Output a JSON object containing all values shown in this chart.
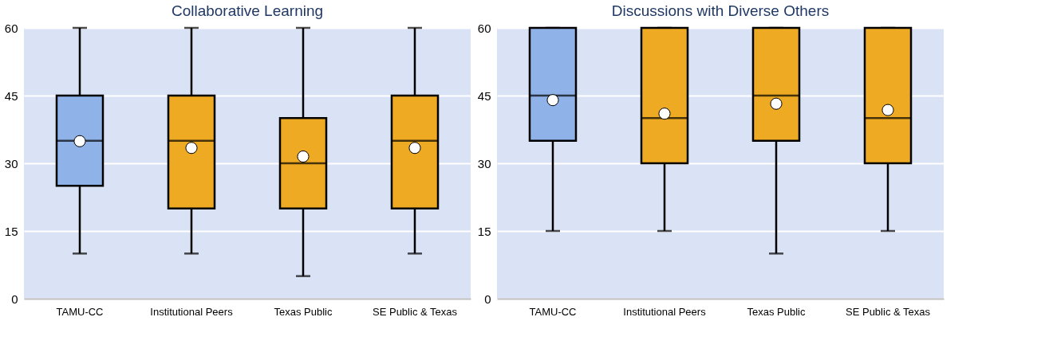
{
  "chart_data": [
    {
      "type": "box",
      "title": "Collaborative Learning",
      "categories": [
        "TAMU-CC",
        "Institutional Peers",
        "Texas Public",
        "SE Public & Texas"
      ],
      "colors": [
        "#8fb2e8",
        "#efaa24",
        "#efaa24",
        "#efaa24"
      ],
      "boxes": [
        {
          "low": 10,
          "q1": 25,
          "median": 35,
          "q3": 45,
          "high": 60,
          "mean": 34.9
        },
        {
          "low": 10,
          "q1": 20,
          "median": 35,
          "q3": 45,
          "high": 60,
          "mean": 33.4
        },
        {
          "low": 5,
          "q1": 20,
          "median": 30,
          "q3": 40,
          "high": 60,
          "mean": 31.5
        },
        {
          "low": 10,
          "q1": 20,
          "median": 35,
          "q3": 45,
          "high": 60,
          "mean": 33.4
        }
      ],
      "ylim": [
        0,
        60
      ],
      "yticks": [
        0,
        15,
        30,
        45,
        60
      ],
      "grid": "y",
      "legend": false
    },
    {
      "type": "box",
      "title": "Discussions with Diverse Others",
      "categories": [
        "TAMU-CC",
        "Institutional Peers",
        "Texas Public",
        "SE Public & Texas"
      ],
      "colors": [
        "#8fb2e8",
        "#efaa24",
        "#efaa24",
        "#efaa24"
      ],
      "boxes": [
        {
          "low": 15,
          "q1": 35,
          "median": 45,
          "q3": 60,
          "high": 60,
          "mean": 44.0
        },
        {
          "low": 15,
          "q1": 30,
          "median": 40,
          "q3": 60,
          "high": 60,
          "mean": 41.0
        },
        {
          "low": 10,
          "q1": 35,
          "median": 45,
          "q3": 60,
          "high": 60,
          "mean": 43.2
        },
        {
          "low": 15,
          "q1": 30,
          "median": 40,
          "q3": 60,
          "high": 60,
          "mean": 41.8
        }
      ],
      "ylim": [
        0,
        60
      ],
      "yticks": [
        0,
        15,
        30,
        45,
        60
      ],
      "grid": "y",
      "legend": false
    }
  ]
}
